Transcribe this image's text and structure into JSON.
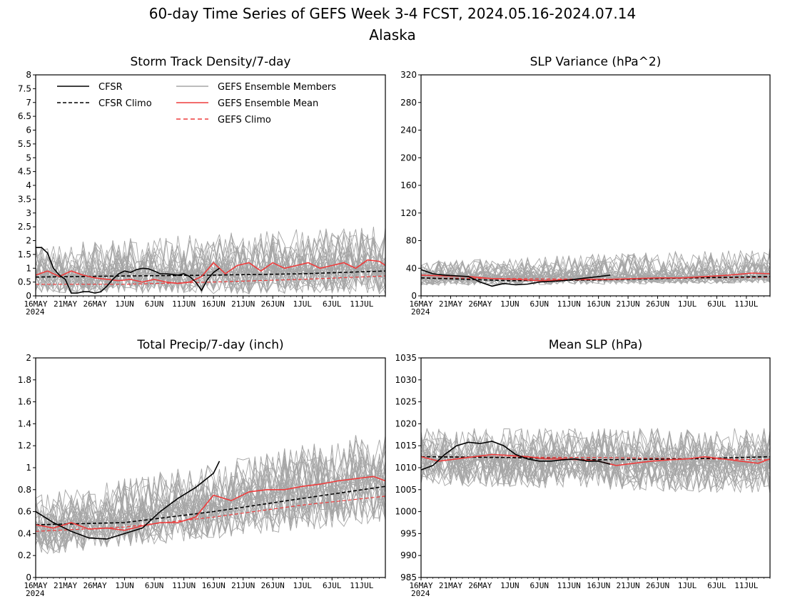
{
  "figure": {
    "title_line1": "60-day Time Series of GEFS Week 3-4 FCST, 2024.05.16-2024.07.14",
    "title_line2": "Alaska"
  },
  "legend": {
    "cfsr": "CFSR",
    "cfsr_climo": "CFSR Climo",
    "members": "GEFS Ensemble Members",
    "mean": "GEFS Ensemble Mean",
    "gefs_climo": "GEFS Climo"
  },
  "colors": {
    "cfsr": "#000000",
    "members": "#a6a6a6",
    "mean": "#ee3b3b",
    "gefs_climo": "#ee3b3b"
  },
  "x_ticks": [
    "16MAY",
    "21MAY",
    "26MAY",
    "1JUN",
    "6JUN",
    "11JUN",
    "16JUN",
    "21JUN",
    "26JUN",
    "1JUL",
    "6JUL",
    "11JUL"
  ],
  "x_year": "2024",
  "chart_data": [
    {
      "type": "line",
      "title": "Storm Track Density/7-day",
      "ylim": [
        0,
        8
      ],
      "yticks": [
        "0",
        "0.5",
        "1",
        "1.5",
        "2",
        "2.5",
        "3",
        "3.5",
        "4",
        "4.5",
        "5",
        "5.5",
        "6",
        "6.5",
        "7",
        "7.5",
        "8"
      ],
      "ytick_values": [
        0,
        0.5,
        1,
        1.5,
        2,
        2.5,
        3,
        3.5,
        4,
        4.5,
        5,
        5.5,
        6,
        6.5,
        7,
        7.5,
        8
      ],
      "x_range": [
        0,
        59
      ],
      "series": [
        {
          "name": "GEFS Ensemble Members",
          "style": "band",
          "low": [
            0.1,
            0.05
          ],
          "high": [
            1.9,
            2.6
          ],
          "center": [
            0.7,
            1.0
          ],
          "seed": 11
        },
        {
          "name": "GEFS Climo",
          "style": "dashed-red",
          "x": [
            0,
            15,
            30,
            45,
            59
          ],
          "y": [
            0.42,
            0.42,
            0.5,
            0.6,
            0.72
          ]
        },
        {
          "name": "CFSR Climo",
          "style": "dashed-black",
          "x": [
            0,
            15,
            30,
            45,
            59
          ],
          "y": [
            0.68,
            0.72,
            0.75,
            0.8,
            0.9
          ]
        },
        {
          "name": "GEFS Ensemble Mean",
          "style": "red",
          "x": [
            0,
            2,
            4,
            6,
            8,
            10,
            12,
            14,
            16,
            18,
            20,
            22,
            24,
            26,
            28,
            30,
            32,
            34,
            36,
            38,
            40,
            42,
            44,
            46,
            48,
            50,
            52,
            54,
            56,
            58,
            59
          ],
          "y": [
            0.75,
            0.9,
            0.7,
            0.9,
            0.75,
            0.65,
            0.6,
            0.55,
            0.6,
            0.5,
            0.6,
            0.5,
            0.45,
            0.5,
            0.7,
            1.2,
            0.8,
            1.1,
            1.2,
            0.9,
            1.2,
            1.0,
            1.1,
            1.2,
            1.0,
            1.1,
            1.2,
            1.0,
            1.3,
            1.25,
            1.1
          ]
        },
        {
          "name": "CFSR",
          "style": "black",
          "x": [
            0,
            1,
            2,
            3,
            4,
            5,
            6,
            7,
            8,
            9,
            10,
            11,
            12,
            13,
            14,
            15,
            16,
            17,
            18,
            19,
            20,
            21,
            22,
            23,
            24,
            25,
            26,
            27,
            28,
            29,
            30,
            31
          ],
          "y": [
            1.75,
            1.75,
            1.55,
            1.0,
            0.75,
            0.6,
            0.1,
            0.1,
            0.15,
            0.15,
            0.1,
            0.15,
            0.35,
            0.6,
            0.8,
            0.9,
            0.85,
            0.95,
            1.0,
            0.98,
            0.9,
            0.8,
            0.8,
            0.78,
            0.75,
            0.8,
            0.7,
            0.5,
            0.2,
            0.6,
            0.85,
            1.0
          ]
        }
      ]
    },
    {
      "type": "line",
      "title": "SLP Variance (hPa^2)",
      "ylim": [
        0,
        320
      ],
      "yticks": [
        "0",
        "40",
        "80",
        "120",
        "160",
        "200",
        "240",
        "280",
        "320"
      ],
      "ytick_values": [
        0,
        40,
        80,
        120,
        160,
        200,
        240,
        280,
        320
      ],
      "x_range": [
        0,
        59
      ],
      "series": [
        {
          "name": "GEFS Ensemble Members",
          "style": "band",
          "low": [
            15,
            18
          ],
          "high": [
            50,
            70
          ],
          "center": [
            27,
            28
          ],
          "seed": 23
        },
        {
          "name": "GEFS Climo",
          "style": "dashed-red",
          "x": [
            0,
            30,
            59
          ],
          "y": [
            26,
            24,
            27
          ]
        },
        {
          "name": "CFSR Climo",
          "style": "dashed-black",
          "x": [
            0,
            15,
            30,
            45,
            59
          ],
          "y": [
            26,
            22,
            23,
            26,
            28
          ]
        },
        {
          "name": "GEFS Ensemble Mean",
          "style": "red",
          "x": [
            0,
            4,
            8,
            12,
            16,
            20,
            24,
            28,
            32,
            36,
            40,
            44,
            48,
            52,
            56,
            59
          ],
          "y": [
            30,
            29,
            28,
            25,
            24,
            22,
            23,
            24,
            24,
            25,
            26,
            26,
            28,
            30,
            33,
            32
          ]
        },
        {
          "name": "CFSR",
          "style": "black",
          "x": [
            0,
            2,
            4,
            6,
            8,
            10,
            12,
            14,
            16,
            18,
            20,
            22,
            24,
            26,
            28,
            30,
            32
          ],
          "y": [
            38,
            32,
            30,
            29,
            28,
            20,
            14,
            18,
            16,
            17,
            20,
            21,
            22,
            24,
            26,
            28,
            30
          ]
        }
      ]
    },
    {
      "type": "line",
      "title": "Total Precip/7-day (inch)",
      "ylim": [
        0,
        2
      ],
      "yticks": [
        "0",
        "0.2",
        "0.4",
        "0.6",
        "0.8",
        "1",
        "1.2",
        "1.4",
        "1.6",
        "1.8",
        "2"
      ],
      "ytick_values": [
        0,
        0.2,
        0.4,
        0.6,
        0.8,
        1,
        1.2,
        1.4,
        1.6,
        1.8,
        2
      ],
      "x_range": [
        0,
        59
      ],
      "series": [
        {
          "name": "GEFS Ensemble Members",
          "style": "band",
          "low": [
            0.2,
            0.5
          ],
          "high": [
            0.75,
            1.35
          ],
          "center": [
            0.42,
            0.9
          ],
          "seed": 37
        },
        {
          "name": "GEFS Climo",
          "style": "dashed-red",
          "x": [
            0,
            15,
            30,
            45,
            59
          ],
          "y": [
            0.42,
            0.46,
            0.55,
            0.66,
            0.74
          ]
        },
        {
          "name": "CFSR Climo",
          "style": "dashed-black",
          "x": [
            0,
            15,
            30,
            45,
            59
          ],
          "y": [
            0.48,
            0.5,
            0.6,
            0.72,
            0.83
          ]
        },
        {
          "name": "GEFS Ensemble Mean",
          "style": "red",
          "x": [
            0,
            3,
            6,
            9,
            12,
            15,
            18,
            21,
            24,
            27,
            30,
            33,
            36,
            39,
            42,
            45,
            48,
            51,
            54,
            57,
            59
          ],
          "y": [
            0.48,
            0.45,
            0.5,
            0.44,
            0.45,
            0.43,
            0.47,
            0.5,
            0.5,
            0.55,
            0.75,
            0.7,
            0.78,
            0.8,
            0.8,
            0.83,
            0.85,
            0.88,
            0.9,
            0.92,
            0.88
          ]
        },
        {
          "name": "CFSR",
          "style": "black",
          "x": [
            0,
            3,
            6,
            9,
            12,
            15,
            18,
            21,
            24,
            27,
            30,
            31
          ],
          "y": [
            0.6,
            0.5,
            0.42,
            0.36,
            0.35,
            0.4,
            0.45,
            0.6,
            0.72,
            0.82,
            0.95,
            1.06
          ]
        }
      ]
    },
    {
      "type": "line",
      "title": "Mean SLP (hPa)",
      "ylim": [
        985,
        1035
      ],
      "yticks": [
        "985",
        "990",
        "995",
        "1000",
        "1005",
        "1010",
        "1015",
        "1020",
        "1025",
        "1030",
        "1035"
      ],
      "ytick_values": [
        985,
        990,
        995,
        1000,
        1005,
        1010,
        1015,
        1020,
        1025,
        1030,
        1035
      ],
      "x_range": [
        0,
        59
      ],
      "series": [
        {
          "name": "GEFS Ensemble Members",
          "style": "band",
          "low": [
            1006,
            1004
          ],
          "high": [
            1019,
            1019
          ],
          "center": [
            1012,
            1011
          ],
          "seed": 53
        },
        {
          "name": "GEFS Climo",
          "style": "dashed-red",
          "x": [
            0,
            30,
            59
          ],
          "y": [
            1012.5,
            1012.3,
            1011.8
          ]
        },
        {
          "name": "CFSR Climo",
          "style": "dashed-black",
          "x": [
            0,
            15,
            30,
            45,
            59
          ],
          "y": [
            1012.5,
            1012.3,
            1011.8,
            1012.0,
            1012.5
          ]
        },
        {
          "name": "GEFS Ensemble Mean",
          "style": "red",
          "x": [
            0,
            3,
            6,
            9,
            12,
            15,
            18,
            21,
            24,
            27,
            30,
            33,
            36,
            39,
            42,
            45,
            48,
            51,
            54,
            57,
            59
          ],
          "y": [
            1012.5,
            1011.5,
            1012,
            1012.5,
            1013,
            1012.8,
            1012.5,
            1012,
            1012,
            1011.8,
            1011.5,
            1010.5,
            1011,
            1011.5,
            1011.8,
            1012,
            1012.5,
            1012,
            1011.5,
            1011,
            1012
          ]
        },
        {
          "name": "CFSR",
          "style": "black",
          "x": [
            0,
            2,
            4,
            6,
            8,
            10,
            12,
            14,
            16,
            18,
            20,
            22,
            24,
            26,
            28,
            30,
            32
          ],
          "y": [
            1009.5,
            1010.5,
            1013,
            1015,
            1015.8,
            1015.5,
            1016,
            1015,
            1013,
            1012,
            1011.5,
            1011.5,
            1011.8,
            1012,
            1011.5,
            1011.5,
            1010.8
          ]
        }
      ]
    }
  ]
}
